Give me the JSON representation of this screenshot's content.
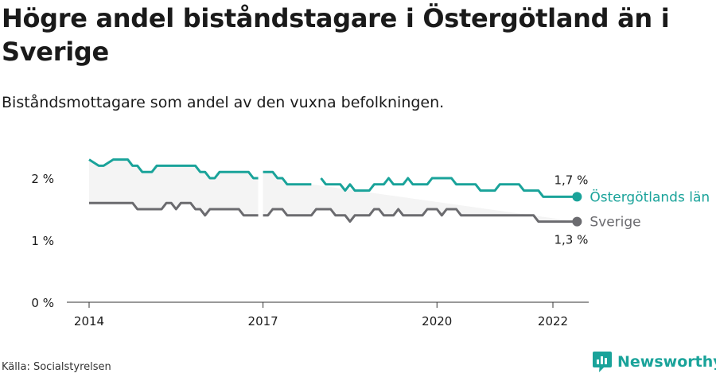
{
  "title": "Högre andel biståndstagare i Östergötland än i Sverige",
  "subtitle": "Biståndsmottagare som andel av den vuxna befolkningen.",
  "source": "Källa: Socialstyrelsen",
  "brand": {
    "name": "Newsworthy",
    "logo_icon": "newsworthy-logo-icon"
  },
  "colors": {
    "ostergotland": "#1aa39a",
    "sverige": "#6b6b6f",
    "band": "#f4f4f4",
    "axis": "#333333",
    "text": "#1a1a1a"
  },
  "chart_data": {
    "type": "line",
    "y_ticks": [
      0,
      1,
      2
    ],
    "y_tick_labels": [
      "0 %",
      "1 %",
      "2 %"
    ],
    "ylim": [
      0,
      2.5
    ],
    "x_tick_labels": [
      "2014",
      "2017",
      "2020",
      "2022"
    ],
    "x_ticks": [
      "2014-01",
      "2017-01",
      "2020-01",
      "2022-01"
    ],
    "x_range": [
      "2013-12",
      "2022-09"
    ],
    "grid": false,
    "legend": "line-end labels",
    "series": [
      {
        "name": "Östergötlands län",
        "end_label": "1,7 %",
        "points": [
          [
            "2014-01",
            2.3
          ],
          [
            "2014-03",
            2.2
          ],
          [
            "2014-04",
            2.2
          ],
          [
            "2014-06",
            2.3
          ],
          [
            "2014-07",
            2.3
          ],
          [
            "2014-08",
            2.3
          ],
          [
            "2014-09",
            2.3
          ],
          [
            "2014-10",
            2.2
          ],
          [
            "2014-11",
            2.2
          ],
          [
            "2014-12",
            2.1
          ],
          [
            "2015-01",
            2.1
          ],
          [
            "2015-02",
            2.1
          ],
          [
            "2015-03",
            2.2
          ],
          [
            "2015-04",
            2.2
          ],
          [
            "2015-06",
            2.2
          ],
          [
            "2015-08",
            2.2
          ],
          [
            "2015-10",
            2.2
          ],
          [
            "2015-11",
            2.2
          ],
          [
            "2015-12",
            2.1
          ],
          [
            "2016-01",
            2.1
          ],
          [
            "2016-02",
            2.0
          ],
          [
            "2016-03",
            2.0
          ],
          [
            "2016-04",
            2.1
          ],
          [
            "2016-06",
            2.1
          ],
          [
            "2016-08",
            2.1
          ],
          [
            "2016-09",
            2.1
          ],
          [
            "2016-10",
            2.1
          ],
          [
            "2016-11",
            2.0
          ],
          [
            "2016-12",
            2.0
          ],
          null,
          [
            "2017-01",
            2.1
          ],
          [
            "2017-03",
            2.1
          ],
          [
            "2017-04",
            2.0
          ],
          [
            "2017-05",
            2.0
          ],
          [
            "2017-06",
            1.9
          ],
          [
            "2017-08",
            1.9
          ],
          [
            "2017-10",
            1.9
          ],
          [
            "2017-11",
            1.9
          ],
          null,
          [
            "2018-01",
            2.0
          ],
          [
            "2018-02",
            1.9
          ],
          [
            "2018-03",
            1.9
          ],
          [
            "2018-05",
            1.9
          ],
          [
            "2018-06",
            1.8
          ],
          [
            "2018-07",
            1.9
          ],
          [
            "2018-08",
            1.8
          ],
          [
            "2018-09",
            1.8
          ],
          [
            "2018-10",
            1.8
          ],
          [
            "2018-11",
            1.8
          ],
          [
            "2018-12",
            1.9
          ],
          [
            "2019-01",
            1.9
          ],
          [
            "2019-02",
            1.9
          ],
          [
            "2019-03",
            2.0
          ],
          [
            "2019-04",
            1.9
          ],
          [
            "2019-05",
            1.9
          ],
          [
            "2019-06",
            1.9
          ],
          [
            "2019-07",
            2.0
          ],
          [
            "2019-08",
            1.9
          ],
          [
            "2019-09",
            1.9
          ],
          [
            "2019-10",
            1.9
          ],
          [
            "2019-11",
            1.9
          ],
          [
            "2019-12",
            2.0
          ],
          [
            "2020-01",
            2.0
          ],
          [
            "2020-02",
            2.0
          ],
          [
            "2020-03",
            2.0
          ],
          [
            "2020-04",
            2.0
          ],
          [
            "2020-05",
            1.9
          ],
          [
            "2020-06",
            1.9
          ],
          [
            "2020-07",
            1.9
          ],
          [
            "2020-08",
            1.9
          ],
          [
            "2020-09",
            1.9
          ],
          [
            "2020-10",
            1.8
          ],
          [
            "2020-11",
            1.8
          ],
          [
            "2020-12",
            1.8
          ],
          [
            "2021-01",
            1.8
          ],
          [
            "2021-02",
            1.9
          ],
          [
            "2021-03",
            1.9
          ],
          [
            "2021-04",
            1.9
          ],
          [
            "2021-05",
            1.9
          ],
          [
            "2021-06",
            1.9
          ],
          [
            "2021-07",
            1.8
          ],
          [
            "2021-08",
            1.8
          ],
          [
            "2021-09",
            1.8
          ],
          [
            "2021-10",
            1.8
          ],
          [
            "2021-11",
            1.7
          ],
          [
            "2021-12",
            1.7
          ],
          [
            "2022-01",
            1.7
          ],
          [
            "2022-03",
            1.7
          ],
          [
            "2022-05",
            1.7
          ],
          [
            "2022-06",
            1.7
          ]
        ]
      },
      {
        "name": "Sverige",
        "end_label": "1,3 %",
        "points": [
          [
            "2014-01",
            1.6
          ],
          [
            "2014-03",
            1.6
          ],
          [
            "2014-05",
            1.6
          ],
          [
            "2014-07",
            1.6
          ],
          [
            "2014-09",
            1.6
          ],
          [
            "2014-10",
            1.6
          ],
          [
            "2014-11",
            1.5
          ],
          [
            "2014-12",
            1.5
          ],
          [
            "2015-01",
            1.5
          ],
          [
            "2015-02",
            1.5
          ],
          [
            "2015-03",
            1.5
          ],
          [
            "2015-04",
            1.5
          ],
          [
            "2015-05",
            1.6
          ],
          [
            "2015-06",
            1.6
          ],
          [
            "2015-07",
            1.5
          ],
          [
            "2015-08",
            1.6
          ],
          [
            "2015-09",
            1.6
          ],
          [
            "2015-10",
            1.6
          ],
          [
            "2015-11",
            1.5
          ],
          [
            "2015-12",
            1.5
          ],
          [
            "2016-01",
            1.4
          ],
          [
            "2016-02",
            1.5
          ],
          [
            "2016-03",
            1.5
          ],
          [
            "2016-05",
            1.5
          ],
          [
            "2016-07",
            1.5
          ],
          [
            "2016-08",
            1.5
          ],
          [
            "2016-09",
            1.4
          ],
          [
            "2016-10",
            1.4
          ],
          [
            "2016-11",
            1.4
          ],
          [
            "2016-12",
            1.4
          ],
          null,
          [
            "2017-01",
            1.4
          ],
          [
            "2017-02",
            1.4
          ],
          [
            "2017-03",
            1.5
          ],
          [
            "2017-04",
            1.5
          ],
          [
            "2017-05",
            1.5
          ],
          [
            "2017-06",
            1.4
          ],
          [
            "2017-08",
            1.4
          ],
          [
            "2017-10",
            1.4
          ],
          [
            "2017-11",
            1.4
          ],
          [
            "2017-12",
            1.5
          ],
          [
            "2018-01",
            1.5
          ],
          [
            "2018-02",
            1.5
          ],
          [
            "2018-03",
            1.5
          ],
          [
            "2018-04",
            1.4
          ],
          [
            "2018-05",
            1.4
          ],
          [
            "2018-06",
            1.4
          ],
          [
            "2018-07",
            1.3
          ],
          [
            "2018-08",
            1.4
          ],
          [
            "2018-09",
            1.4
          ],
          [
            "2018-10",
            1.4
          ],
          [
            "2018-11",
            1.4
          ],
          [
            "2018-12",
            1.5
          ],
          [
            "2019-01",
            1.5
          ],
          [
            "2019-02",
            1.4
          ],
          [
            "2019-03",
            1.4
          ],
          [
            "2019-04",
            1.4
          ],
          [
            "2019-05",
            1.5
          ],
          [
            "2019-06",
            1.4
          ],
          [
            "2019-07",
            1.4
          ],
          [
            "2019-08",
            1.4
          ],
          [
            "2019-09",
            1.4
          ],
          [
            "2019-10",
            1.4
          ],
          [
            "2019-11",
            1.5
          ],
          [
            "2019-12",
            1.5
          ],
          [
            "2020-01",
            1.5
          ],
          [
            "2020-02",
            1.4
          ],
          [
            "2020-03",
            1.5
          ],
          [
            "2020-04",
            1.5
          ],
          [
            "2020-05",
            1.5
          ],
          [
            "2020-06",
            1.4
          ],
          [
            "2020-08",
            1.4
          ],
          [
            "2020-10",
            1.4
          ],
          [
            "2020-12",
            1.4
          ],
          [
            "2021-02",
            1.4
          ],
          [
            "2021-04",
            1.4
          ],
          [
            "2021-06",
            1.4
          ],
          [
            "2021-08",
            1.4
          ],
          [
            "2021-09",
            1.4
          ],
          [
            "2021-10",
            1.3
          ],
          [
            "2021-11",
            1.3
          ],
          [
            "2022-01",
            1.3
          ],
          [
            "2022-03",
            1.3
          ],
          [
            "2022-05",
            1.3
          ],
          [
            "2022-06",
            1.3
          ]
        ]
      }
    ]
  }
}
